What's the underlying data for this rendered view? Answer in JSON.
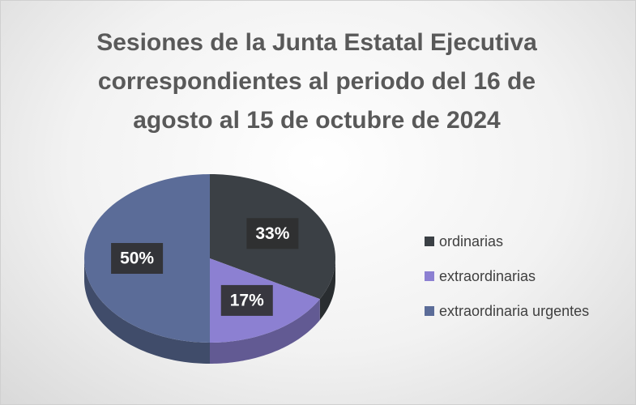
{
  "chart_data": {
    "type": "pie",
    "title": "Sesiones de la Junta Estatal Ejecutiva correspondientes al periodo del 16 de agosto al 15 de octubre de 2024",
    "categories": [
      "ordinarias",
      "extraordinarias",
      "extraordinaria urgentes"
    ],
    "values": [
      33,
      17,
      50
    ],
    "value_labels": [
      "33%",
      "17%",
      "50%"
    ],
    "colors": [
      "#3b4045",
      "#8c80d2",
      "#5b6c98"
    ],
    "legend": "right"
  }
}
